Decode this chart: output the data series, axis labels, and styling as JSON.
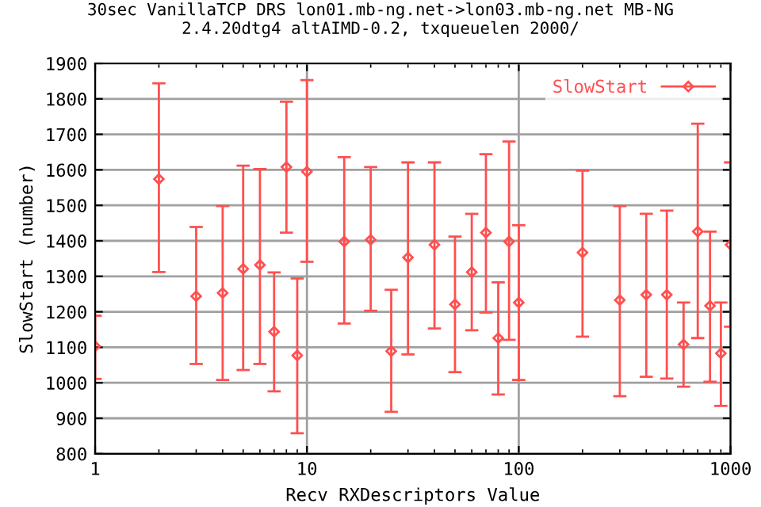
{
  "chart_data": {
    "type": "scatter",
    "title": "30sec VanillaTCP DRS lon01.mb-ng.net->lon03.mb-ng.net MB-NG\n2.4.20dtg4 altAIMD-0.2, txqueuelen 2000/",
    "xlabel": "Recv RXDescriptors Value",
    "ylabel": "SlowStart (number)",
    "log": "x",
    "xlim": [
      1,
      1000
    ],
    "xticks": [
      1,
      10,
      100,
      1000
    ],
    "ylim": [
      800,
      1900
    ],
    "yticks": [
      800,
      900,
      1000,
      1100,
      1200,
      1300,
      1400,
      1500,
      1600,
      1700,
      1800,
      1900
    ],
    "grid": true,
    "legend": "top right",
    "marker": "diamond",
    "x": [
      1,
      2,
      3,
      4,
      5,
      6,
      7,
      8,
      9,
      10,
      15,
      20,
      25,
      30,
      40,
      50,
      60,
      70,
      80,
      90,
      100,
      200,
      300,
      400,
      500,
      600,
      700,
      800,
      900,
      1000
    ],
    "series": [
      {
        "name": "SlowStart",
        "color": "#ff4f4f",
        "values": [
          1103,
          1574,
          1244,
          1253,
          1321,
          1332,
          1144,
          1608,
          1077,
          1595,
          1398,
          1403,
          1089,
          1353,
          1389,
          1221,
          1312,
          1423,
          1126,
          1398,
          1226,
          1367,
          1233,
          1248,
          1248,
          1108,
          1426,
          1217,
          1083,
          1389
        ],
        "errors": [
          [
            1011,
            1189
          ],
          [
            1312,
            1844
          ],
          [
            1053,
            1439
          ],
          [
            1008,
            1498
          ],
          [
            1036,
            1612
          ],
          [
            1053,
            1602
          ],
          [
            976,
            1311
          ],
          [
            1423,
            1792
          ],
          [
            858,
            1294
          ],
          [
            1341,
            1853
          ],
          [
            1167,
            1636
          ],
          [
            1203,
            1608
          ],
          [
            918,
            1262
          ],
          [
            1080,
            1621
          ],
          [
            1153,
            1621
          ],
          [
            1030,
            1412
          ],
          [
            1148,
            1476
          ],
          [
            1198,
            1644
          ],
          [
            967,
            1283
          ],
          [
            1121,
            1680
          ],
          [
            1008,
            1444
          ],
          [
            1130,
            1598
          ],
          [
            962,
            1498
          ],
          [
            1017,
            1476
          ],
          [
            1012,
            1485
          ],
          [
            989,
            1226
          ],
          [
            1126,
            1730
          ],
          [
            1003,
            1426
          ],
          [
            935,
            1226
          ],
          [
            1158,
            1621
          ]
        ]
      }
    ]
  }
}
